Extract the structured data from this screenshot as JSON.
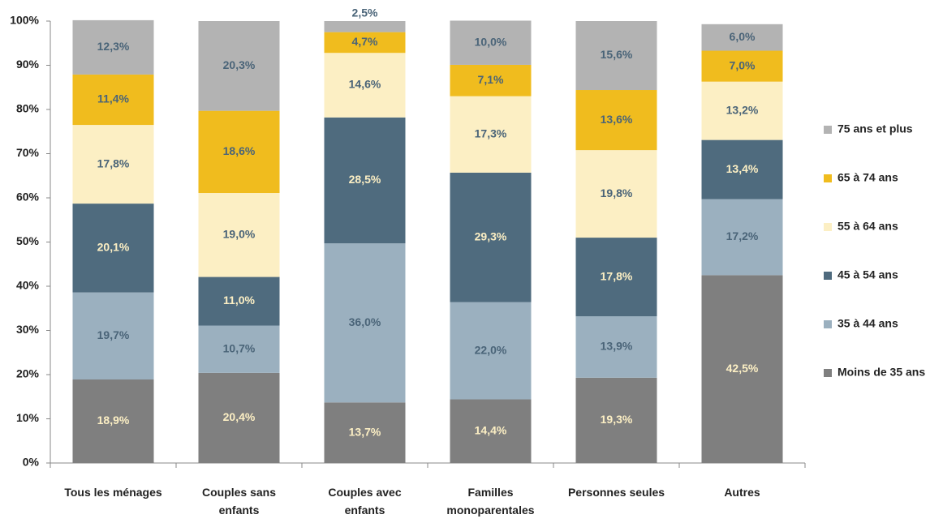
{
  "chart_data": {
    "type": "stacked_bar",
    "categories": [
      "Tous les ménages",
      "Couples sans enfants",
      "Couples avec enfants",
      "Familles monoparentales",
      "Personnes seules",
      "Autres"
    ],
    "series": [
      {
        "name": "Moins de 35 ans",
        "color": "#7f7f7f",
        "label_color": "#fcefc4",
        "values": [
          18.9,
          20.4,
          13.7,
          14.4,
          19.3,
          42.5
        ],
        "value_labels": [
          "18,9%",
          "20,4%",
          "13,7%",
          "14,4%",
          "19,3%",
          "42,5%"
        ]
      },
      {
        "name": "35 à 44 ans",
        "color": "#9bb0bf",
        "label_color": "#4a6478",
        "values": [
          19.7,
          10.7,
          36.0,
          22.0,
          13.9,
          17.2
        ],
        "value_labels": [
          "19,7%",
          "10,7%",
          "36,0%",
          "22,0%",
          "13,9%",
          "17,2%"
        ]
      },
      {
        "name": "45 à 54 ans",
        "color": "#4f6b7e",
        "label_color": "#fcefc4",
        "values": [
          20.1,
          11.0,
          28.5,
          29.3,
          17.8,
          13.4
        ],
        "value_labels": [
          "20,1%",
          "11,0%",
          "28,5%",
          "29,3%",
          "17,8%",
          "13,4%"
        ]
      },
      {
        "name": "55 à 64 ans",
        "color": "#fcefc4",
        "label_color": "#4a6478",
        "values": [
          17.8,
          19.0,
          14.6,
          17.3,
          19.8,
          13.2
        ],
        "value_labels": [
          "17,8%",
          "19,0%",
          "14,6%",
          "17,3%",
          "19,8%",
          "13,2%"
        ]
      },
      {
        "name": "65 à 74 ans",
        "color": "#f0bc1e",
        "label_color": "#4a6478",
        "values": [
          11.4,
          18.6,
          4.7,
          7.1,
          13.6,
          7.0
        ],
        "value_labels": [
          "11,4%",
          "18,6%",
          "4,7%",
          "7,1%",
          "13,6%",
          "7,0%"
        ]
      },
      {
        "name": "75 ans et plus",
        "color": "#b3b3b3",
        "label_color": "#4a6478",
        "values": [
          12.3,
          20.3,
          2.5,
          10.0,
          15.6,
          6.0
        ],
        "value_labels": [
          "12,3%",
          "20,3%",
          "2,5%",
          "10,0%",
          "15,6%",
          "6,0%"
        ]
      }
    ],
    "ylim": [
      0,
      100
    ],
    "yticks": [
      {
        "value": 0,
        "label": "0%"
      },
      {
        "value": 10,
        "label": "10%"
      },
      {
        "value": 20,
        "label": "20%"
      },
      {
        "value": 30,
        "label": "30%"
      },
      {
        "value": 40,
        "label": "40%"
      },
      {
        "value": 50,
        "label": "50%"
      },
      {
        "value": 60,
        "label": "60%"
      },
      {
        "value": 70,
        "label": "70%"
      },
      {
        "value": 80,
        "label": "80%"
      },
      {
        "value": 90,
        "label": "90%"
      },
      {
        "value": 100,
        "label": "100%"
      }
    ],
    "grid": false,
    "legend": "right"
  }
}
